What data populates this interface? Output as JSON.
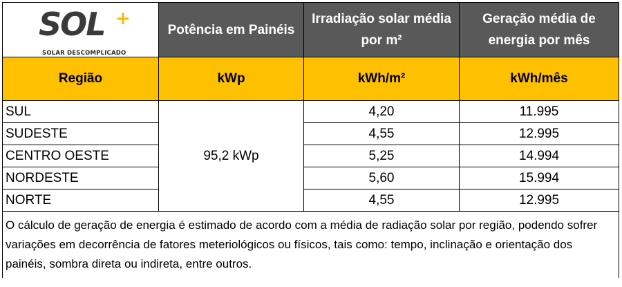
{
  "logo": {
    "word": "SOL",
    "plus": "+",
    "tagline": "SOLAR DESCOMPLICADO",
    "accent_color": "#f5b800"
  },
  "header": {
    "col2": "Potência em Painéis",
    "col3": "Irradiação solar média por m²",
    "col4": "Geração média de energia por mês",
    "bg_color": "#595959"
  },
  "units": {
    "col1": "Região",
    "col2": "kWp",
    "col3": "kWh/m²",
    "col4": "kWh/mês",
    "bg_color": "#ffc000"
  },
  "power": "95,2 kWp",
  "rows": [
    {
      "region": "SUL",
      "irradiation": "4,20",
      "generation": "11.995"
    },
    {
      "region": "SUDESTE",
      "irradiation": "4,55",
      "generation": "12.995"
    },
    {
      "region": "CENTRO OESTE",
      "irradiation": "5,25",
      "generation": "14.994"
    },
    {
      "region": "NORDESTE",
      "irradiation": "5,60",
      "generation": "15.994"
    },
    {
      "region": "NORTE",
      "irradiation": "4,55",
      "generation": "12.995"
    }
  ],
  "note": "O cálculo de geração de energia é estimado de acordo com a média de radiação solar por região, podendo sofrer variações em decorrência de fatores meteriológicos ou físicos, tais como: tempo, inclinação e orientação dos painéis, sombra direta ou indireta, entre outros."
}
